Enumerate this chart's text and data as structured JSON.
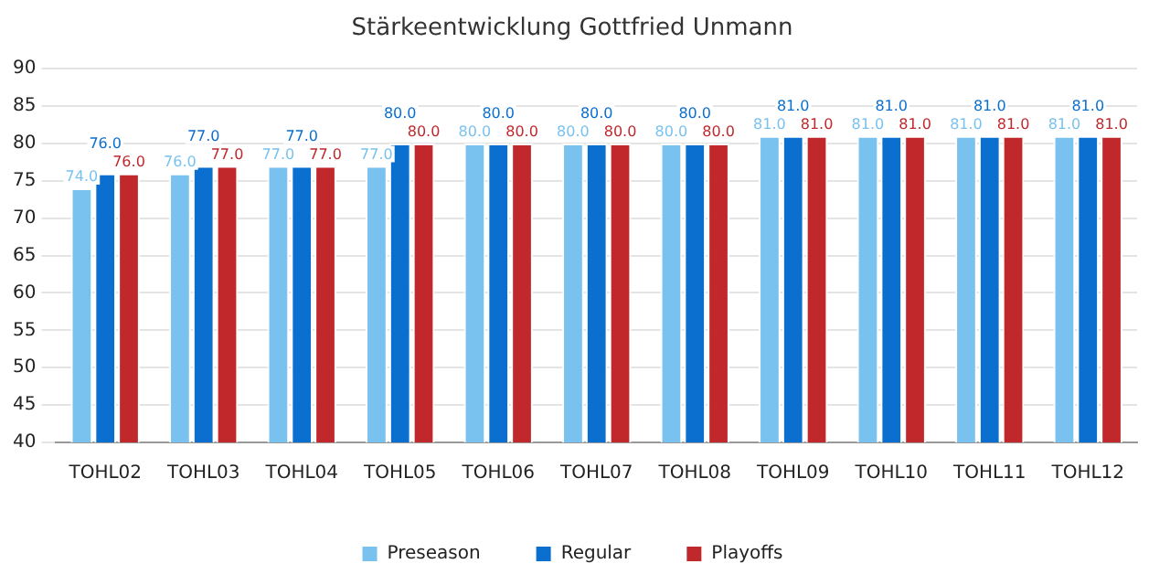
{
  "chart_data": {
    "type": "bar",
    "title": "Stärkeentwicklung Gottfried Unmann",
    "categories": [
      "TOHL02",
      "TOHL03",
      "TOHL04",
      "TOHL05",
      "TOHL06",
      "TOHL07",
      "TOHL08",
      "TOHL09",
      "TOHL10",
      "TOHL11",
      "TOHL12"
    ],
    "series": [
      {
        "name": "Preseason",
        "color": "#79c2ef",
        "values": [
          74,
          76,
          77,
          77,
          80,
          80,
          80,
          81,
          81,
          81,
          81
        ],
        "value_labels": [
          "74.0",
          "76.0",
          "77.0",
          "77.0",
          "80.0",
          "80.0",
          "80.0",
          "81.0",
          "81.0",
          "81.0",
          "81.0"
        ]
      },
      {
        "name": "Regular",
        "color": "#0a6fcf",
        "values": [
          76,
          77,
          77,
          80,
          80,
          80,
          80,
          81,
          81,
          81,
          81
        ],
        "value_labels": [
          "76.0",
          "77.0",
          "77.0",
          "80.0",
          "80.0",
          "80.0",
          "80.0",
          "81.0",
          "81.0",
          "81.0",
          "81.0"
        ]
      },
      {
        "name": "Playoffs",
        "color": "#c0282c",
        "values": [
          76,
          77,
          77,
          80,
          80,
          80,
          80,
          81,
          81,
          81,
          81
        ],
        "value_labels": [
          "76.0",
          "77.0",
          "77.0",
          "80.0",
          "80.0",
          "80.0",
          "80.0",
          "81.0",
          "81.0",
          "81.0",
          "81.0"
        ]
      }
    ],
    "ylim": [
      40,
      90
    ],
    "yticks": [
      40,
      45,
      50,
      55,
      60,
      65,
      70,
      75,
      80,
      85,
      90
    ],
    "grid": "y",
    "legend": "bottom"
  }
}
